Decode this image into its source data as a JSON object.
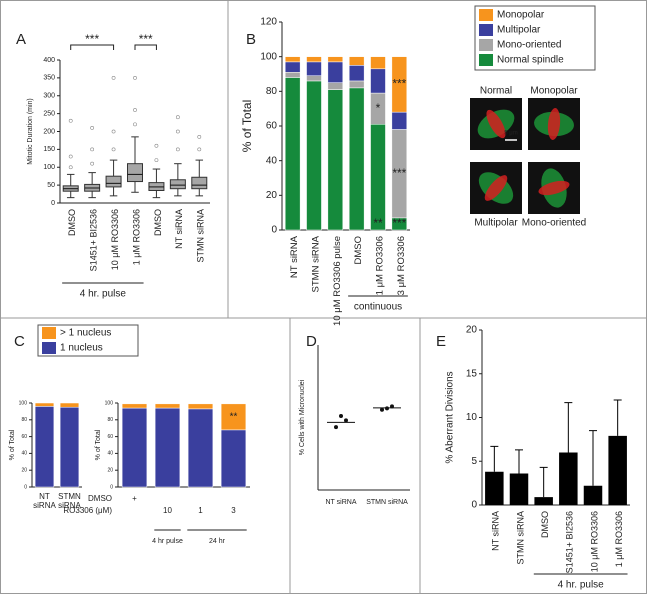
{
  "chart_data": [
    {
      "type": "box",
      "panel": "A",
      "ylabel": "Mitotic Duration (min)",
      "categories": [
        "DMSO",
        "S1451+ BI2536",
        "10 μM RO3306",
        "1 μM RO3306",
        "DMSO",
        "NT siRNA",
        "STMN siRNA"
      ],
      "min": [
        15,
        15,
        20,
        30,
        15,
        20,
        20
      ],
      "q1": [
        33,
        33,
        45,
        60,
        35,
        40,
        40
      ],
      "median": [
        40,
        42,
        55,
        80,
        45,
        50,
        50
      ],
      "q3": [
        48,
        52,
        75,
        110,
        57,
        65,
        72
      ],
      "max": [
        80,
        85,
        120,
        185,
        95,
        110,
        120
      ],
      "outliers": [
        [
          100,
          130,
          230
        ],
        [
          110,
          150,
          210
        ],
        [
          150,
          200,
          350
        ],
        [
          220,
          260,
          350
        ],
        [
          120,
          160
        ],
        [
          150,
          200,
          240
        ],
        [
          150,
          185
        ]
      ],
      "color": "#a6a6a6",
      "ylim": [
        0,
        400
      ],
      "yticks": [
        0,
        50,
        100,
        150,
        200,
        250,
        300,
        350,
        400
      ],
      "brackets": [
        "***",
        "***"
      ],
      "group_label": "4 hr. pulse"
    },
    {
      "type": "stacked_bar",
      "panel": "B",
      "ylabel": "% of Total",
      "categories": [
        "NT siRNA",
        "STMN siRNA",
        "10 μM RO3306 pulse",
        "DMSO",
        "1 μM RO3306",
        "3 μM RO3306"
      ],
      "series": [
        {
          "name": "Normal spindle",
          "color": "#158a3c",
          "values": [
            88,
            86,
            81,
            82,
            61,
            7
          ],
          "significance": [
            null,
            null,
            null,
            null,
            "**",
            "***"
          ]
        },
        {
          "name": "Mono-oriented",
          "color": "#a6a6a6",
          "values": [
            3,
            3,
            4,
            4,
            18,
            51
          ],
          "significance": [
            null,
            null,
            null,
            null,
            "*",
            "***"
          ]
        },
        {
          "name": "Multipolar",
          "color": "#3a3f9e",
          "values": [
            6,
            8,
            12,
            9,
            14,
            10
          ],
          "significance": [
            null,
            null,
            null,
            null,
            null,
            null
          ]
        },
        {
          "name": "Monopolar",
          "color": "#f7941d",
          "values": [
            3,
            3,
            3,
            5,
            7,
            32
          ],
          "significance": [
            null,
            null,
            null,
            null,
            null,
            "***"
          ]
        }
      ],
      "ylim": [
        0,
        120
      ],
      "yticks": [
        0,
        20,
        40,
        60,
        80,
        100,
        120
      ],
      "group_label": "continuous",
      "images": [
        "Normal",
        "Monopolar",
        "Multipolar",
        "Mono-oriented"
      ],
      "scale_bar": "5 μm"
    },
    {
      "type": "stacked_bar",
      "panel": "C",
      "ylabel": "% of Total",
      "categories": [
        "NT siRNA",
        "STMN siRNA"
      ],
      "series": [
        {
          "name": "1 nucleus",
          "color": "#3a3f9e",
          "values": [
            96,
            95
          ]
        },
        {
          "name": "> 1 nucleus",
          "color": "#f7941d",
          "values": [
            4,
            5
          ]
        }
      ],
      "ylim": [
        0,
        100
      ],
      "yticks": [
        0,
        20,
        40,
        60,
        80,
        100
      ]
    },
    {
      "type": "stacked_bar",
      "ylabel": "% of Total",
      "row_titles": [
        "DMSO",
        "RO3306 (μM)"
      ],
      "rows": [
        [
          "+",
          null,
          null,
          null
        ],
        [
          null,
          "10",
          "1",
          "3"
        ]
      ],
      "series": [
        {
          "color": "#3a3f9e",
          "values": [
            94,
            94,
            93,
            68
          ],
          "significance": [
            null,
            null,
            null,
            null
          ]
        },
        {
          "color": "#f7941d",
          "values": [
            5,
            5,
            6,
            31
          ],
          "significance": [
            null,
            null,
            null,
            "**"
          ]
        }
      ],
      "ylim": [
        0,
        100
      ],
      "yticks": [
        0,
        20,
        40,
        60,
        80,
        100
      ],
      "group_labels": [
        "4 hr pulse",
        "24 hr"
      ]
    },
    {
      "type": "dot",
      "panel": "D",
      "ylabel": "% Cells with Micronuclei",
      "categories": [
        "NT siRNA",
        "STMN siRNA"
      ],
      "points": [
        [
          13,
          15.3,
          14.4
        ],
        [
          16.6,
          16.9,
          17.3
        ]
      ],
      "means": [
        14,
        17
      ],
      "ylim": [
        0,
        30
      ]
    },
    {
      "type": "bar_error",
      "panel": "E",
      "ylabel": "% Aberrant Divisions",
      "categories": [
        "NT siRNA",
        "STMN siRNA",
        "DMSO",
        "S1451+ BI2536",
        "10 μM RO3306",
        "1 μM RO3306"
      ],
      "values": [
        3.8,
        3.6,
        0.9,
        6,
        2.2,
        7.9
      ],
      "errors": [
        2.9,
        2.7,
        3.4,
        5.7,
        6.3,
        4.1
      ],
      "color": "#000000",
      "ylim": [
        0,
        20
      ],
      "yticks": [
        0,
        5,
        10,
        15,
        20
      ],
      "group_label": "4 hr. pulse"
    }
  ]
}
